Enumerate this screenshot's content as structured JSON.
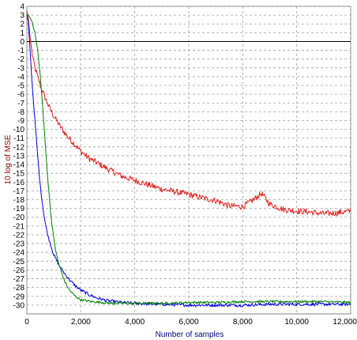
{
  "chart_data": {
    "type": "line",
    "title": "",
    "xlabel": "Number of samples",
    "ylabel": "10 log of MSE",
    "xlim": [
      0,
      12000
    ],
    "ylim": [
      -31,
      4
    ],
    "x_ticks": [
      0,
      2000,
      4000,
      6000,
      8000,
      10000,
      12000
    ],
    "x_tick_labels": [
      "0",
      "2,000",
      "4,000",
      "6,000",
      "8,000",
      "10,000",
      "12,000"
    ],
    "y_ticks": [
      4,
      3,
      2,
      1,
      0,
      -1,
      -2,
      -3,
      -4,
      -5,
      -6,
      -7,
      -8,
      -9,
      -10,
      -11,
      -12,
      -13,
      -14,
      -15,
      -16,
      -17,
      -18,
      -19,
      -20,
      -21,
      -22,
      -23,
      -24,
      -25,
      -26,
      -27,
      -28,
      -29,
      -30
    ],
    "grid": true,
    "zero_line": true,
    "series": [
      {
        "color": "#e02020",
        "x": [
          0,
          60,
          120,
          200,
          300,
          400,
          500,
          600,
          800,
          1000,
          1200,
          1500,
          1800,
          2000,
          2300,
          2600,
          3000,
          3500,
          4000,
          4500,
          5000,
          5500,
          6000,
          6500,
          7000,
          7500,
          8000,
          8400,
          8700,
          9000,
          9500,
          10000,
          10500,
          11000,
          11500,
          12000
        ],
        "y": [
          3.5,
          2.5,
          0.5,
          -1.5,
          -3.0,
          -4.0,
          -5.0,
          -5.8,
          -7.3,
          -8.5,
          -9.5,
          -10.8,
          -11.8,
          -12.5,
          -13.3,
          -13.8,
          -14.5,
          -15.3,
          -15.8,
          -16.3,
          -16.8,
          -17.1,
          -17.4,
          -17.8,
          -18.1,
          -18.7,
          -18.8,
          -18.0,
          -17.3,
          -18.5,
          -19.1,
          -19.3,
          -19.4,
          -19.6,
          -19.5,
          -19.3
        ]
      },
      {
        "color": "#0000e0",
        "x": [
          0,
          50,
          100,
          150,
          200,
          300,
          400,
          500,
          600,
          700,
          800,
          900,
          1000,
          1200,
          1400,
          1600,
          1800,
          2000,
          2300,
          2600,
          3000,
          3500,
          4000,
          5000,
          6000,
          7000,
          8000,
          9000,
          10000,
          11000,
          12000
        ],
        "y": [
          3.0,
          2.3,
          0.0,
          -2.5,
          -5.0,
          -9.0,
          -13.0,
          -16.5,
          -19.0,
          -21.0,
          -22.3,
          -23.3,
          -24.3,
          -25.5,
          -26.4,
          -27.2,
          -27.8,
          -28.3,
          -28.8,
          -29.2,
          -29.5,
          -29.7,
          -29.8,
          -29.9,
          -30.0,
          -30.0,
          -30.0,
          -29.9,
          -29.9,
          -29.9,
          -29.9
        ]
      },
      {
        "color": "#008000",
        "x": [
          0,
          100,
          200,
          300,
          400,
          500,
          600,
          700,
          800,
          900,
          1000,
          1100,
          1200,
          1400,
          1600,
          1800,
          2000,
          2400,
          2800,
          3200,
          4000,
          5000,
          6000,
          7000,
          8000,
          9000,
          10000,
          11000,
          12000
        ],
        "y": [
          3.2,
          2.8,
          2.2,
          1.0,
          -1.0,
          -4.0,
          -8.0,
          -12.5,
          -16.5,
          -20.0,
          -22.5,
          -24.3,
          -25.5,
          -27.3,
          -28.4,
          -29.0,
          -29.4,
          -29.6,
          -29.7,
          -29.8,
          -29.8,
          -29.8,
          -29.7,
          -29.7,
          -29.6,
          -29.6,
          -29.6,
          -29.6,
          -29.7
        ]
      }
    ]
  }
}
